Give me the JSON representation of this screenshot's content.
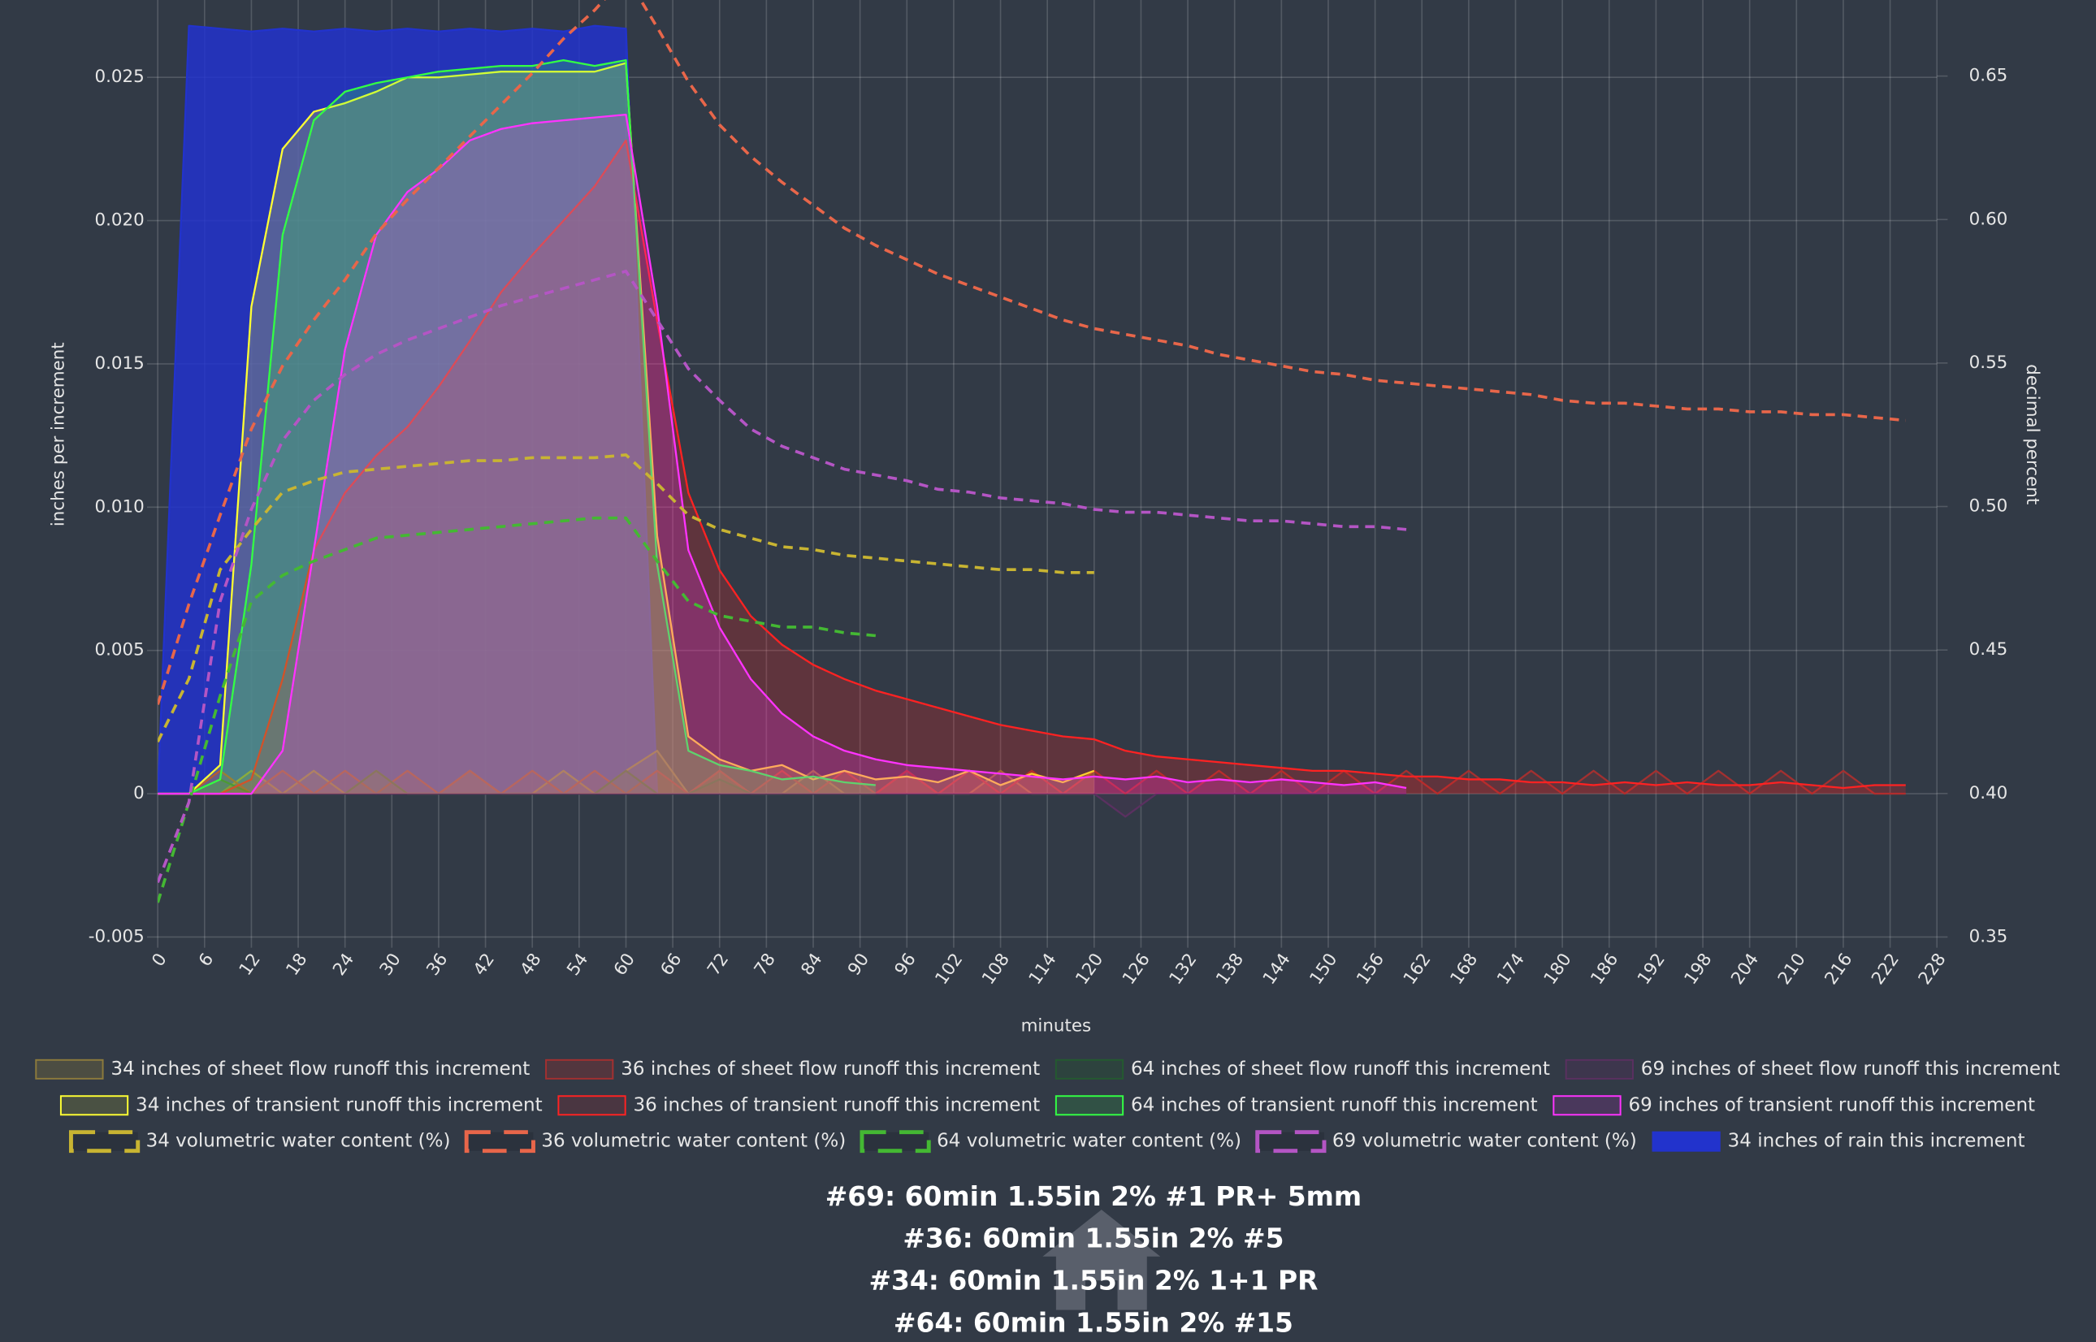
{
  "chart_data": {
    "type": "line",
    "x_label": "minutes",
    "y_label": "inches per increment",
    "y2_label": "decimal percent",
    "titles": [
      "#69: 60min 1.55in 2% #1 PR+ 5mm",
      "#36: 60min 1.55in 2% #5",
      "#34: 60min 1.55in 2% 1+1 PR",
      "#64: 60min 1.55in 2% #15"
    ],
    "xlim": [
      0,
      228
    ],
    "ylim": [
      -0.005,
      0.0277
    ],
    "y2lim": [
      0.35,
      0.6765
    ],
    "grid": true,
    "xticks": [
      0,
      6,
      12,
      18,
      24,
      30,
      36,
      42,
      48,
      54,
      60,
      66,
      72,
      78,
      84,
      90,
      96,
      102,
      108,
      114,
      120,
      126,
      132,
      138,
      144,
      150,
      156,
      162,
      168,
      174,
      180,
      186,
      192,
      198,
      204,
      210,
      216,
      222,
      228
    ],
    "yticks": [
      -0.005,
      0,
      0.005,
      {
        "value": 0.01,
        "label": "0.010"
      },
      0.015,
      {
        "value": 0.02,
        "label": "0.020"
      },
      0.025
    ],
    "y2ticks": [
      0.35,
      {
        "value": 0.4,
        "label": "0.40"
      },
      0.45,
      {
        "value": 0.5,
        "label": "0.50"
      },
      0.55,
      {
        "value": 0.6,
        "label": "0.60"
      },
      0.65
    ],
    "x": [
      0,
      4,
      8,
      12,
      16,
      20,
      24,
      28,
      32,
      36,
      40,
      44,
      48,
      52,
      56,
      60,
      64,
      68,
      72,
      76,
      80,
      84,
      88,
      92,
      96,
      100,
      104,
      108,
      112,
      116,
      120,
      124,
      128,
      132,
      136,
      140,
      144,
      148,
      152,
      156,
      160,
      164,
      168,
      172,
      176,
      180,
      184,
      188,
      192,
      196,
      200,
      204,
      208,
      212,
      216,
      220,
      224,
      228
    ],
    "series": [
      {
        "name": "34 inches of sheet flow runoff this increment",
        "color": "#8c7a3c",
        "fill": "shaded",
        "values": [
          0,
          0,
          0,
          0.0008,
          0,
          0.0008,
          0,
          0.0008,
          0,
          0,
          0.0008,
          0,
          0,
          0.0008,
          0,
          0.0008,
          0.0015,
          0,
          0.0008,
          0,
          0,
          0.0008,
          0,
          0,
          0.0008,
          0,
          0,
          0.0008,
          0,
          0,
          0,
          null,
          null,
          null,
          null,
          null,
          null,
          null,
          null,
          null,
          null,
          null,
          null,
          null,
          null,
          null,
          null,
          null,
          null,
          null,
          null,
          null,
          null,
          null,
          null,
          null,
          null,
          null
        ]
      },
      {
        "name": "36 inches of sheet flow runoff this increment",
        "color": "#a33030",
        "fill": "shaded",
        "values": [
          0,
          0,
          0.0008,
          0,
          0.0008,
          0,
          0.0008,
          0,
          0.0008,
          0,
          0.0008,
          0,
          0.0008,
          0,
          0.0008,
          0,
          0.0008,
          0,
          0.0008,
          0,
          0.0008,
          0,
          0.0008,
          0,
          0.0008,
          0,
          0.0008,
          0,
          0.0008,
          0,
          0.0008,
          0,
          0.0008,
          0,
          0.0008,
          0,
          0.0008,
          0,
          0.0008,
          0,
          0.0008,
          0,
          0.0008,
          0,
          0.0008,
          0,
          0.0008,
          0,
          0.0008,
          0,
          0.0008,
          0,
          0.0008,
          0,
          0.0008,
          0,
          0,
          null
        ]
      },
      {
        "name": "64 inches of sheet flow runoff this increment",
        "color": "#245a30",
        "fill": "shaded",
        "values": [
          0,
          0,
          0.0005,
          0,
          0,
          0,
          0,
          0.0008,
          0,
          0,
          0,
          0,
          0,
          0,
          0,
          0.0008,
          0,
          0,
          0.0005,
          0,
          0,
          0,
          0,
          0,
          null,
          null,
          null,
          null,
          null,
          null,
          null,
          null,
          null,
          null,
          null,
          null,
          null,
          null,
          null,
          null,
          null,
          null,
          null,
          null,
          null,
          null,
          null,
          null,
          null,
          null,
          null,
          null,
          null,
          null,
          null,
          null,
          null,
          null
        ]
      },
      {
        "name": "69 inches of sheet flow runoff this increment",
        "color": "#5a3060",
        "fill": "shaded",
        "values": [
          0,
          0,
          0,
          0,
          0,
          0,
          0,
          0,
          0,
          0,
          0,
          0,
          0,
          0,
          0,
          0,
          0,
          0,
          0,
          0,
          0,
          0,
          0,
          0,
          0,
          0,
          0,
          0,
          0,
          0,
          0,
          -0.0008,
          0,
          0,
          0,
          0,
          0,
          0,
          0,
          0,
          0,
          null,
          null,
          null,
          null,
          null,
          null,
          null,
          null,
          null,
          null,
          null,
          null,
          null,
          null,
          null,
          null,
          null
        ]
      },
      {
        "name": "34 inches of transient runoff this increment",
        "color": "#ffff33",
        "fill": "shaded",
        "values": [
          0,
          0,
          0.001,
          0.017,
          0.0225,
          0.0238,
          0.0241,
          0.0245,
          0.025,
          0.025,
          0.0251,
          0.0252,
          0.0252,
          0.0252,
          0.0252,
          0.0255,
          0.009,
          0.002,
          0.0012,
          0.0008,
          0.001,
          0.0005,
          0.0008,
          0.0005,
          0.0006,
          0.0004,
          0.0008,
          0.0003,
          0.0007,
          0.0004,
          0.0008,
          null,
          null,
          null,
          null,
          null,
          null,
          null,
          null,
          null,
          null,
          null,
          null,
          null,
          null,
          null,
          null,
          null,
          null,
          null,
          null,
          null,
          null,
          null,
          null,
          null,
          null,
          null
        ]
      },
      {
        "name": "36 inches of transient runoff this increment",
        "color": "#ff2222",
        "fill": "shaded",
        "values": [
          0,
          0,
          0,
          0.0005,
          0.004,
          0.0085,
          0.0105,
          0.0118,
          0.0128,
          0.0142,
          0.0158,
          0.0175,
          0.0188,
          0.02,
          0.0212,
          0.0228,
          0.0165,
          0.0105,
          0.0078,
          0.0062,
          0.0052,
          0.0045,
          0.004,
          0.0036,
          0.0033,
          0.003,
          0.0027,
          0.0024,
          0.0022,
          0.002,
          0.0019,
          0.0015,
          0.0013,
          0.0012,
          0.0011,
          0.001,
          0.0009,
          0.0008,
          0.0008,
          0.0007,
          0.0006,
          0.0006,
          0.0005,
          0.0005,
          0.0004,
          0.0004,
          0.0003,
          0.0004,
          0.0003,
          0.0004,
          0.0003,
          0.0003,
          0.0004,
          0.0003,
          0.0002,
          0.0003,
          0.0003,
          null
        ]
      },
      {
        "name": "64 inches of transient runoff this increment",
        "color": "#33ff44",
        "fill": "shaded",
        "values": [
          0,
          0,
          0.0005,
          0.008,
          0.0195,
          0.0235,
          0.0245,
          0.0248,
          0.025,
          0.0252,
          0.0253,
          0.0254,
          0.0254,
          0.0256,
          0.0254,
          0.0256,
          0.008,
          0.0015,
          0.001,
          0.0008,
          0.0005,
          0.0006,
          0.0004,
          0.0003,
          null,
          null,
          null,
          null,
          null,
          null,
          null,
          null,
          null,
          null,
          null,
          null,
          null,
          null,
          null,
          null,
          null,
          null,
          null,
          null,
          null,
          null,
          null,
          null,
          null,
          null,
          null,
          null,
          null,
          null,
          null,
          null,
          null,
          null
        ]
      },
      {
        "name": "69 inches of transient runoff this increment",
        "color": "#ff33ff",
        "fill": "shaded",
        "values": [
          0,
          0,
          0,
          0,
          0.0015,
          0.0085,
          0.0155,
          0.0195,
          0.021,
          0.0218,
          0.0228,
          0.0232,
          0.0234,
          0.0235,
          0.0236,
          0.0237,
          0.017,
          0.0085,
          0.0058,
          0.004,
          0.0028,
          0.002,
          0.0015,
          0.0012,
          0.001,
          0.0009,
          0.0008,
          0.0007,
          0.0006,
          0.0005,
          0.0006,
          0.0005,
          0.0006,
          0.0004,
          0.0005,
          0.0004,
          0.0005,
          0.0004,
          0.0003,
          0.0004,
          0.0002,
          null,
          null,
          null,
          null,
          null,
          null,
          null,
          null,
          null,
          null,
          null,
          null,
          null,
          null,
          null,
          null,
          null
        ]
      },
      {
        "name": "34 volumetric water content (%)",
        "color": "#c8b432",
        "dash": true,
        "axis": "y2",
        "values": [
          0.418,
          0.44,
          0.478,
          0.492,
          0.505,
          0.509,
          0.512,
          0.513,
          0.514,
          0.515,
          0.516,
          0.516,
          0.517,
          0.517,
          0.517,
          0.518,
          0.508,
          0.497,
          0.492,
          0.489,
          0.486,
          0.485,
          0.483,
          0.482,
          0.481,
          0.48,
          0.479,
          0.478,
          0.478,
          0.477,
          0.477,
          null,
          null,
          null,
          null,
          null,
          null,
          null,
          null,
          null,
          null,
          null,
          null,
          null,
          null,
          null,
          null,
          null,
          null,
          null,
          null,
          null,
          null,
          null,
          null,
          null,
          null,
          null
        ]
      },
      {
        "name": "36 volumetric water content (%)",
        "color": "#e8664a",
        "dash": true,
        "axis": "y2",
        "values": [
          0.431,
          0.466,
          0.497,
          0.527,
          0.549,
          0.565,
          0.579,
          0.595,
          0.607,
          0.618,
          0.629,
          0.64,
          0.651,
          0.663,
          0.673,
          0.685,
          0.667,
          0.648,
          0.633,
          0.622,
          0.613,
          0.605,
          0.597,
          0.591,
          0.586,
          0.581,
          0.577,
          0.573,
          0.569,
          0.565,
          0.562,
          0.56,
          0.558,
          0.556,
          0.553,
          0.551,
          0.549,
          0.547,
          0.546,
          0.544,
          0.543,
          0.542,
          0.541,
          0.54,
          0.539,
          0.537,
          0.536,
          0.536,
          0.535,
          0.534,
          0.534,
          0.533,
          0.533,
          0.532,
          0.532,
          0.531,
          0.53,
          null
        ]
      },
      {
        "name": "64 volumetric water content (%)",
        "color": "#44b833",
        "dash": true,
        "axis": "y2",
        "values": [
          0.362,
          0.397,
          0.434,
          0.467,
          0.476,
          0.481,
          0.485,
          0.489,
          0.49,
          0.491,
          0.492,
          0.493,
          0.494,
          0.495,
          0.496,
          0.496,
          0.481,
          0.467,
          0.462,
          0.46,
          0.458,
          0.458,
          0.456,
          0.455,
          null,
          null,
          null,
          null,
          null,
          null,
          null,
          null,
          null,
          null,
          null,
          null,
          null,
          null,
          null,
          null,
          null,
          null,
          null,
          null,
          null,
          null,
          null,
          null,
          null,
          null,
          null,
          null,
          null,
          null,
          null,
          null,
          null,
          null
        ]
      },
      {
        "name": "69 volumetric water content (%)",
        "color": "#b455c4",
        "dash": true,
        "axis": "y2",
        "values": [
          0.369,
          0.397,
          0.467,
          0.499,
          0.523,
          0.537,
          0.546,
          0.553,
          0.558,
          0.562,
          0.566,
          0.57,
          0.573,
          0.576,
          0.579,
          0.582,
          0.565,
          0.548,
          0.537,
          0.527,
          0.521,
          0.517,
          0.513,
          0.511,
          0.509,
          0.506,
          0.505,
          0.503,
          0.502,
          0.501,
          0.499,
          0.498,
          0.498,
          0.497,
          0.496,
          0.495,
          0.495,
          0.494,
          0.493,
          0.493,
          0.492,
          null,
          null,
          null,
          null,
          null,
          null,
          null,
          null,
          null,
          null,
          null,
          null,
          null,
          null,
          null,
          null,
          null
        ]
      },
      {
        "name": "34 inches of rain this increment",
        "color": "#2233cc",
        "fill": "solid",
        "values": [
          0,
          0.0268,
          0.0267,
          0.0266,
          0.0267,
          0.0266,
          0.0267,
          0.0266,
          0.0267,
          0.0266,
          0.0267,
          0.0266,
          0.0267,
          0.0266,
          0.0268,
          0.0267,
          0,
          null,
          null,
          null,
          null,
          null,
          null,
          null,
          null,
          null,
          null,
          null,
          null,
          null,
          null,
          null,
          null,
          null,
          null,
          null,
          null,
          null,
          null,
          null,
          null,
          null,
          null,
          null,
          null,
          null,
          null,
          null,
          null,
          null,
          null,
          null,
          null,
          null,
          null,
          null,
          null,
          null
        ]
      }
    ]
  }
}
